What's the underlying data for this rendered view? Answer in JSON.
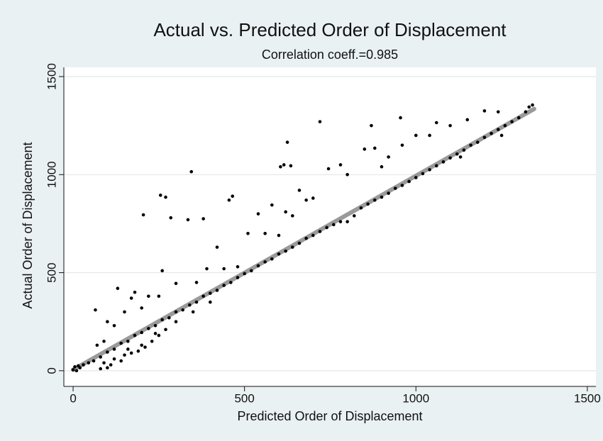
{
  "chart_data": {
    "type": "scatter",
    "title": "Actual vs. Predicted Order of Displacement",
    "subtitle": "Correlation coeff.=0.985",
    "xlabel": "Predicted Order of Displacement",
    "ylabel": "Actual Order of Displacement",
    "xlim": [
      -27,
      1525
    ],
    "ylim": [
      -80,
      1547
    ],
    "xticks": [
      0,
      500,
      1000,
      1500
    ],
    "yticks": [
      0,
      500,
      1000,
      1500
    ],
    "grid": true,
    "color": "#000000",
    "x": [
      205,
      255,
      270,
      285,
      345,
      335,
      380,
      455,
      465,
      580,
      605,
      615,
      625,
      635,
      660,
      720,
      745,
      780,
      800,
      870,
      955,
      850,
      880,
      900,
      1060,
      1200,
      1240,
      65,
      130,
      100,
      170,
      180,
      260,
      300,
      420,
      510,
      540,
      560,
      620,
      680,
      700,
      640,
      480,
      440,
      1000,
      1100,
      1150,
      960,
      1040,
      920,
      360,
      250,
      220,
      150,
      120,
      90,
      70,
      200,
      390,
      600,
      80,
      100,
      90,
      120,
      150,
      170,
      190,
      210,
      230,
      250,
      270,
      110,
      140,
      160,
      200,
      240,
      300,
      350,
      400,
      0,
      5,
      10,
      15,
      20,
      30,
      45,
      60,
      80,
      100,
      120,
      140,
      160,
      180,
      200,
      220,
      240,
      260,
      280,
      300,
      320,
      340,
      360,
      380,
      400,
      420,
      440,
      460,
      480,
      500,
      520,
      540,
      560,
      580,
      600,
      620,
      640,
      660,
      680,
      700,
      720,
      740,
      760,
      780,
      800,
      820,
      840,
      860,
      880,
      900,
      920,
      940,
      960,
      980,
      1000,
      1020,
      1040,
      1060,
      1080,
      1100,
      1120,
      1140,
      1160,
      1180,
      1200,
      1220,
      1240,
      1260,
      1280,
      1300,
      1320,
      1340,
      1330,
      1250,
      1130
    ],
    "y": [
      795,
      895,
      885,
      780,
      1015,
      770,
      775,
      870,
      890,
      845,
      1040,
      1050,
      1165,
      1045,
      920,
      1270,
      1030,
      1050,
      1000,
      1250,
      1290,
      1130,
      1135,
      1040,
      1265,
      1325,
      1320,
      310,
      420,
      250,
      370,
      400,
      510,
      445,
      630,
      700,
      800,
      700,
      810,
      870,
      880,
      790,
      530,
      520,
      1200,
      1250,
      1280,
      1150,
      1200,
      1090,
      450,
      380,
      380,
      300,
      230,
      150,
      130,
      320,
      520,
      690,
      10,
      15,
      40,
      60,
      80,
      90,
      100,
      120,
      150,
      180,
      210,
      30,
      50,
      110,
      130,
      190,
      250,
      300,
      350,
      5,
      20,
      0,
      25,
      15,
      30,
      40,
      50,
      70,
      95,
      110,
      140,
      150,
      180,
      195,
      215,
      230,
      260,
      270,
      300,
      310,
      335,
      350,
      380,
      395,
      410,
      435,
      450,
      475,
      495,
      510,
      535,
      555,
      570,
      595,
      610,
      630,
      650,
      675,
      690,
      710,
      730,
      745,
      760,
      760,
      790,
      830,
      850,
      870,
      885,
      905,
      930,
      945,
      965,
      985,
      1005,
      1025,
      1045,
      1065,
      1085,
      1105,
      1125,
      1150,
      1165,
      1190,
      1210,
      1230,
      1250,
      1270,
      1290,
      1320,
      1355,
      1345,
      1200,
      1090
    ],
    "fit": {
      "color": "#9a9a9a",
      "x": [
        0,
        1345
      ],
      "y": [
        5,
        1335
      ]
    }
  }
}
